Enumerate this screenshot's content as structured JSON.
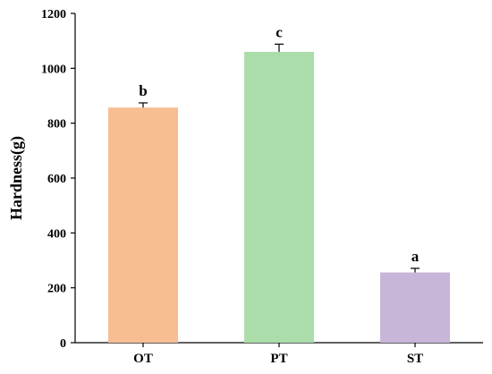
{
  "chart_data": {
    "type": "bar",
    "categories": [
      "OT",
      "PT",
      "ST"
    ],
    "values": [
      857,
      1060,
      256
    ],
    "errors": [
      17,
      28,
      15
    ],
    "significance": [
      "b",
      "c",
      "a"
    ],
    "colors": [
      "#F7BD93",
      "#ABDDAA",
      "#C8B6D8"
    ],
    "ylabel": "Hardness(g)",
    "ylim": [
      0,
      1200
    ],
    "yticks": [
      "0",
      "200",
      "400",
      "600",
      "800",
      "1000",
      "1200"
    ],
    "grid": false
  }
}
